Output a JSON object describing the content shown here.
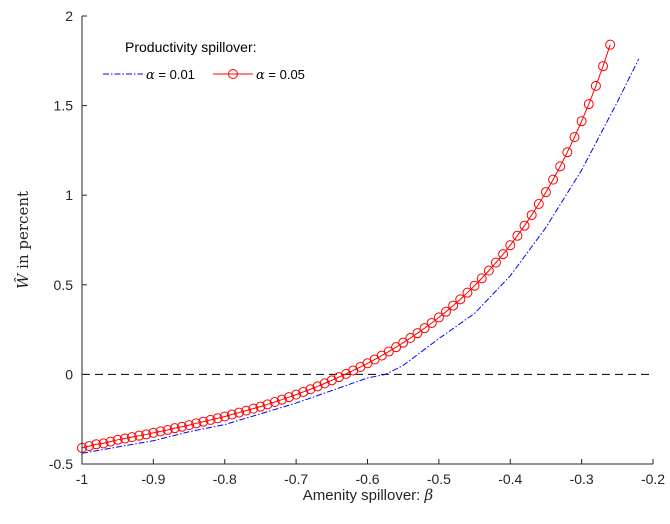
{
  "chart_data": {
    "type": "line",
    "xlim": [
      -1,
      -0.2
    ],
    "ylim": [
      -0.5,
      2
    ],
    "xticks": [
      -1,
      -0.9,
      -0.8,
      -0.7,
      -0.6,
      -0.5,
      -0.4,
      -0.3,
      -0.2
    ],
    "xtick_labels": [
      "-1",
      "-0.9",
      "-0.8",
      "-0.7",
      "-0.6",
      "-0.5",
      "-0.4",
      "-0.3",
      "-0.2"
    ],
    "yticks": [
      -0.5,
      0,
      0.5,
      1,
      1.5,
      2
    ],
    "ytick_labels": [
      "-0.5",
      "0",
      "0.5",
      "1",
      "1.5",
      "2"
    ],
    "xlabel_text": "Amenity spillover: ",
    "xlabel_math": "β",
    "ylabel_math": "Ŵ",
    "ylabel_text": " in percent",
    "legend": {
      "title": "Productivity spillover:",
      "placement": "top-left",
      "entries": [
        {
          "symbol": "α",
          "text": " = 0.01"
        },
        {
          "symbol": "α",
          "text": " = 0.05"
        }
      ]
    },
    "reference_line": {
      "y": 0,
      "style": "dashed",
      "color": "#000000"
    },
    "series": [
      {
        "style": "dash-dot",
        "color": "#0000ff",
        "marker": "none",
        "x": [
          -1.0,
          -0.95,
          -0.9,
          -0.85,
          -0.8,
          -0.75,
          -0.7,
          -0.65,
          -0.6,
          -0.575,
          -0.55,
          -0.5,
          -0.45,
          -0.4,
          -0.35,
          -0.3,
          -0.25,
          -0.22
        ],
        "y": [
          -0.44,
          -0.405,
          -0.37,
          -0.32,
          -0.28,
          -0.22,
          -0.16,
          -0.09,
          -0.02,
          0.0,
          0.05,
          0.2,
          0.34,
          0.55,
          0.82,
          1.14,
          1.52,
          1.76
        ]
      },
      {
        "style": "solid",
        "color": "#ff0000",
        "marker": "circle",
        "x": [
          -1.0,
          -0.99,
          -0.98,
          -0.97,
          -0.96,
          -0.95,
          -0.94,
          -0.93,
          -0.92,
          -0.91,
          -0.9,
          -0.89,
          -0.88,
          -0.87,
          -0.86,
          -0.85,
          -0.84,
          -0.83,
          -0.82,
          -0.81,
          -0.8,
          -0.79,
          -0.78,
          -0.77,
          -0.76,
          -0.75,
          -0.74,
          -0.73,
          -0.72,
          -0.71,
          -0.7,
          -0.69,
          -0.68,
          -0.67,
          -0.66,
          -0.65,
          -0.64,
          -0.63,
          -0.62,
          -0.61,
          -0.6,
          -0.59,
          -0.58,
          -0.57,
          -0.56,
          -0.55,
          -0.54,
          -0.53,
          -0.52,
          -0.51,
          -0.5,
          -0.49,
          -0.48,
          -0.47,
          -0.46,
          -0.45,
          -0.44,
          -0.43,
          -0.42,
          -0.41,
          -0.4,
          -0.39,
          -0.38,
          -0.37,
          -0.36,
          -0.35,
          -0.34,
          -0.33,
          -0.32,
          -0.31,
          -0.3,
          -0.29,
          -0.28,
          -0.27,
          -0.26
        ],
        "y": [
          -0.41,
          -0.4,
          -0.39,
          -0.385,
          -0.375,
          -0.365,
          -0.358,
          -0.35,
          -0.342,
          -0.335,
          -0.326,
          -0.318,
          -0.31,
          -0.3,
          -0.292,
          -0.283,
          -0.273,
          -0.264,
          -0.254,
          -0.245,
          -0.235,
          -0.224,
          -0.213,
          -0.202,
          -0.191,
          -0.18,
          -0.167,
          -0.154,
          -0.141,
          -0.127,
          -0.113,
          -0.098,
          -0.083,
          -0.067,
          -0.05,
          -0.033,
          -0.015,
          0.003,
          0.022,
          0.041,
          0.062,
          0.083,
          0.105,
          0.128,
          0.152,
          0.177,
          0.203,
          0.23,
          0.258,
          0.287,
          0.318,
          0.35,
          0.384,
          0.419,
          0.456,
          0.495,
          0.536,
          0.579,
          0.624,
          0.671,
          0.721,
          0.774,
          0.83,
          0.889,
          0.951,
          1.017,
          1.087,
          1.161,
          1.24,
          1.324,
          1.413,
          1.508,
          1.61,
          1.72,
          1.84
        ]
      }
    ]
  }
}
